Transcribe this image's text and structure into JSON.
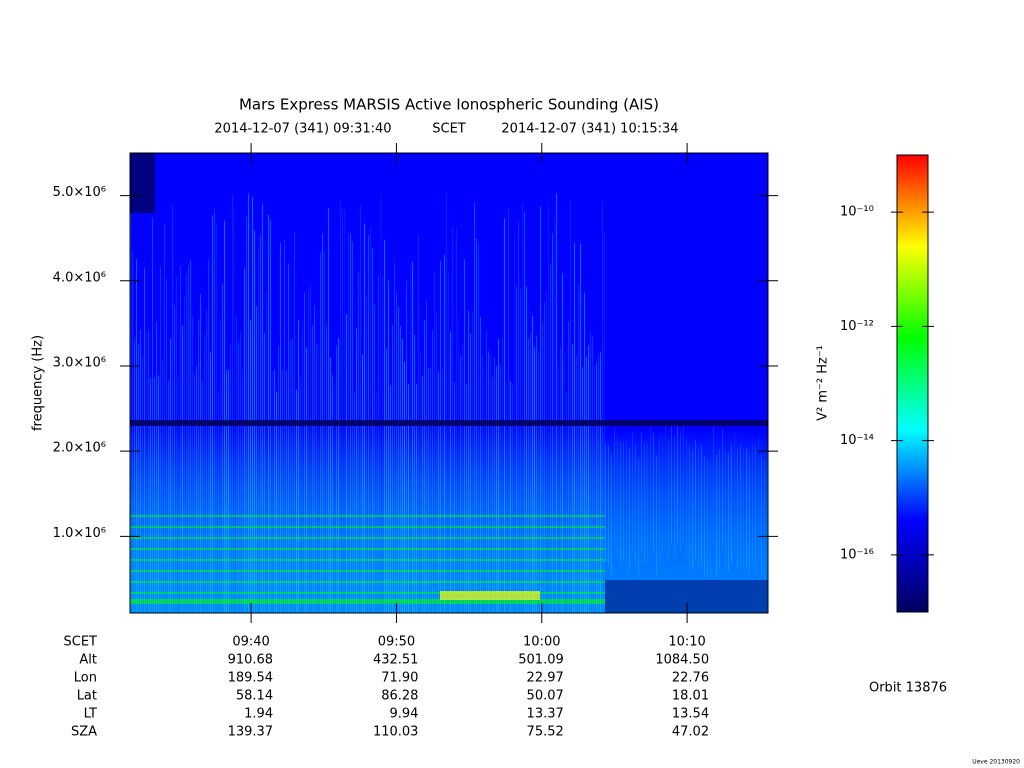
{
  "chart_data": {
    "type": "spectrogram",
    "title": "Mars Express MARSIS Active Ionospheric Sounding (AIS)",
    "start": "2014-12-07 (341) 09:31:40",
    "time_system": "SCET",
    "end": "2014-12-07 (341) 10:15:34",
    "y_label": "frequency (Hz)",
    "xlim": [
      "09:31:40",
      "10:15:34"
    ],
    "xticks": [
      "09:40",
      "09:50",
      "10:00",
      "10:10"
    ],
    "ylim": [
      100000,
      5500000
    ],
    "yticks": [
      {
        "value": 1000000,
        "label": "1.0×10⁶"
      },
      {
        "value": 2000000,
        "label": "2.0×10⁶"
      },
      {
        "value": 3000000,
        "label": "3.0×10⁶"
      },
      {
        "value": 4000000,
        "label": "4.0×10⁶"
      },
      {
        "value": 5000000,
        "label": "5.0×10⁶"
      }
    ],
    "ephemeris": [
      {
        "name": "Alt",
        "values": [
          "910.68",
          "432.51",
          "501.09",
          "1084.50"
        ]
      },
      {
        "name": "Lon",
        "values": [
          "189.54",
          "71.90",
          "22.97",
          "22.76"
        ]
      },
      {
        "name": "Lat",
        "values": [
          "58.14",
          "86.28",
          "50.07",
          "18.01"
        ]
      },
      {
        "name": "LT",
        "values": [
          "1.94",
          "9.94",
          "13.37",
          "13.54"
        ]
      },
      {
        "name": "SZA",
        "values": [
          "139.37",
          "110.03",
          "75.52",
          "47.02"
        ]
      }
    ],
    "colorbar_label": "V² m⁻² Hz⁻¹",
    "zlim": [
      1e-17,
      1e-09
    ],
    "zlog": true,
    "zticks": [
      {
        "value": 1e-10,
        "label": "10⁻¹⁰"
      },
      {
        "value": 1e-12,
        "label": "10⁻¹²"
      },
      {
        "value": 1e-14,
        "label": "10⁻¹⁴"
      },
      {
        "value": 1e-16,
        "label": "10⁻¹⁶"
      }
    ],
    "colormap": [
      "#000060",
      "#0000ff",
      "#00ffff",
      "#00ff00",
      "#ffff00",
      "#ff0000"
    ],
    "orbit": "Orbit 13876",
    "footer": "Ueve 20130920"
  }
}
